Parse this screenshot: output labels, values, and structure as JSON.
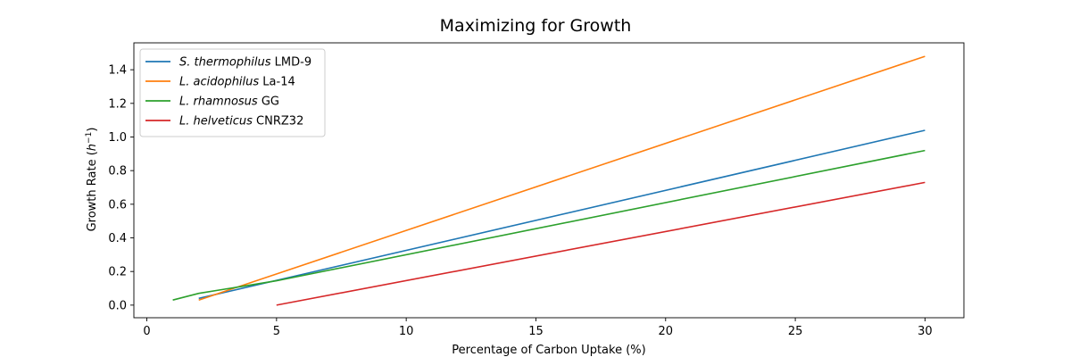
{
  "chart_data": {
    "type": "line",
    "title": "Maximizing for Growth",
    "xlabel": "Percentage of Carbon Uptake (%)",
    "ylabel_main": "Growth Rate (",
    "ylabel_var": "h",
    "ylabel_sup": "−1",
    "ylabel_end": ")",
    "xlim": [
      -0.5,
      31.5
    ],
    "ylim": [
      -0.075,
      1.56
    ],
    "xticks": [
      0,
      5,
      10,
      15,
      20,
      25,
      30
    ],
    "xtick_labels": [
      "0",
      "5",
      "10",
      "15",
      "20",
      "25",
      "30"
    ],
    "yticks": [
      0.0,
      0.2,
      0.4,
      0.6,
      0.8,
      1.0,
      1.2,
      1.4
    ],
    "ytick_labels": [
      "0.0",
      "0.2",
      "0.4",
      "0.6",
      "0.8",
      "1.0",
      "1.2",
      "1.4"
    ],
    "legend_position": "top-left",
    "series": [
      {
        "name_italic": "S. thermophilus",
        "name_rest": " LMD-9",
        "color": "#1f77b4",
        "x": [
          2,
          30
        ],
        "y": [
          0.04,
          1.04
        ]
      },
      {
        "name_italic": "L. acidophilus",
        "name_rest": " La-14",
        "color": "#ff7f0e",
        "x": [
          2,
          30
        ],
        "y": [
          0.03,
          1.48
        ]
      },
      {
        "name_italic": "L. rhamnosus",
        "name_rest": " GG",
        "color": "#2ca02c",
        "x": [
          1,
          2,
          3,
          4,
          5,
          30
        ],
        "y": [
          0.03,
          0.07,
          0.095,
          0.12,
          0.145,
          0.92
        ]
      },
      {
        "name_italic": "L. helveticus",
        "name_rest": " CNRZ32",
        "color": "#d62728",
        "x": [
          5,
          30
        ],
        "y": [
          0.0,
          0.73
        ]
      }
    ]
  }
}
